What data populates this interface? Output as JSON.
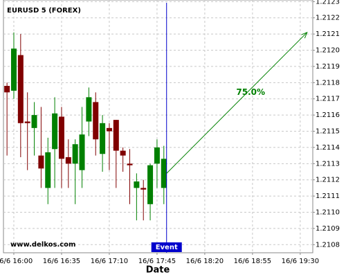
{
  "chart_data": {
    "type": "candlestick",
    "title": "EURUSD 5 (FOREX)",
    "watermark": "www.delkos.com",
    "xlabel": "Date",
    "x": [
      955,
      960,
      965,
      970,
      975,
      980,
      985,
      990,
      995,
      1000,
      1005,
      1010,
      1015,
      1020,
      1025,
      1030,
      1035,
      1040,
      1045,
      1050,
      1055,
      1060,
      1065,
      1070
    ],
    "open": [
      1.21178,
      1.21175,
      1.21197,
      1.21156,
      1.21152,
      1.21135,
      1.21115,
      1.21139,
      1.21159,
      1.21134,
      1.2113,
      1.21126,
      1.21156,
      1.21168,
      1.21136,
      1.21152,
      1.21157,
      1.21138,
      1.2113,
      1.21115,
      1.21115,
      1.21105,
      1.2113,
      1.21115
    ],
    "high": [
      1.2118,
      1.21211,
      1.2121,
      1.21174,
      1.21168,
      1.21165,
      1.21146,
      1.21171,
      1.21165,
      1.21145,
      1.21145,
      1.21165,
      1.21177,
      1.21174,
      1.2116,
      1.21155,
      1.21157,
      1.2114,
      1.21139,
      1.21124,
      1.2112,
      1.2113,
      1.21145,
      1.21141
    ],
    "low": [
      1.21135,
      1.2117,
      1.21134,
      1.21126,
      1.21135,
      1.21115,
      1.21105,
      1.21115,
      1.21115,
      1.21115,
      1.21105,
      1.21115,
      1.21147,
      1.21135,
      1.21125,
      1.21126,
      1.21115,
      1.21125,
      1.21105,
      1.21095,
      1.21095,
      1.21095,
      1.21115,
      1.21105
    ],
    "close": [
      1.21174,
      1.21201,
      1.21155,
      1.21155,
      1.2116,
      1.21127,
      1.21137,
      1.21161,
      1.21133,
      1.2113,
      1.21142,
      1.21148,
      1.21171,
      1.21145,
      1.21155,
      1.2115,
      1.21138,
      1.21135,
      1.21129,
      1.21119,
      1.21114,
      1.21129,
      1.2114,
      1.21133
    ],
    "up_color": "#008000",
    "down_color": "#800000",
    "xlim": [
      952.4,
      1179.2
    ],
    "xticks": [
      {
        "value": 960,
        "label": "16/6 16:00"
      },
      {
        "value": 995,
        "label": "16/6 16:35"
      },
      {
        "value": 1030,
        "label": "16/6 17:10"
      },
      {
        "value": 1065,
        "label": "16/6 17:45"
      },
      {
        "value": 1100,
        "label": "16/6 18:20"
      },
      {
        "value": 1135,
        "label": "16/6 18:55"
      },
      {
        "value": 1170,
        "label": "16/6 19:30"
      }
    ],
    "ylim": [
      1.21075,
      1.21231
    ],
    "yticks": [
      1.2123,
      1.2122,
      1.2121,
      {
        "value": 1.212,
        "label": "1.2120"
      },
      1.2119,
      1.2118,
      1.2117,
      1.2116,
      1.2115,
      1.2114,
      1.2113,
      1.2112,
      1.2111,
      {
        "value": 1.211,
        "label": "1.2110"
      },
      1.2109,
      1.2108
    ],
    "grid": true,
    "event": {
      "label": "Event",
      "x": 1072,
      "color": "#0000cc"
    },
    "projection": {
      "label": "75.0%",
      "x": [
        1072,
        1175
      ],
      "y": [
        1.21124,
        1.21211
      ],
      "color": "#008000"
    }
  }
}
